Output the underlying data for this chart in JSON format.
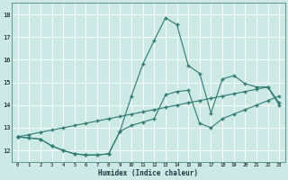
{
  "xlabel": "Humidex (Indice chaleur)",
  "bg_color": "#cce9e5",
  "grid_color": "#ffffff",
  "line_color": "#2e7b6e",
  "xlim": [
    -0.5,
    23.5
  ],
  "ylim": [
    11.5,
    18.5
  ],
  "yticks": [
    12,
    13,
    14,
    15,
    16,
    17,
    18
  ],
  "xticks": [
    0,
    1,
    2,
    3,
    4,
    5,
    6,
    7,
    8,
    9,
    10,
    11,
    12,
    13,
    14,
    15,
    16,
    17,
    18,
    19,
    20,
    21,
    22,
    23
  ],
  "series_peak_x": [
    0,
    1,
    2,
    3,
    4,
    5,
    6,
    7,
    8,
    9,
    10,
    11,
    12,
    13,
    14,
    15,
    16,
    17,
    18,
    19,
    20,
    21,
    22,
    23
  ],
  "series_peak_y": [
    12.6,
    12.55,
    12.5,
    12.2,
    12.0,
    11.85,
    11.8,
    11.8,
    11.85,
    12.85,
    14.4,
    15.8,
    16.85,
    17.85,
    17.55,
    15.75,
    15.4,
    13.65,
    15.15,
    15.3,
    14.95,
    14.8,
    14.8,
    14.1
  ],
  "series_linear_x": [
    0,
    1,
    2,
    3,
    4,
    5,
    6,
    7,
    8,
    9,
    10,
    11,
    12,
    13,
    14,
    15,
    16,
    17,
    18,
    19,
    20,
    21,
    22,
    23
  ],
  "series_linear_y": [
    12.6,
    12.7,
    12.8,
    12.9,
    13.0,
    13.1,
    13.2,
    13.3,
    13.4,
    13.5,
    13.6,
    13.7,
    13.8,
    13.9,
    14.0,
    14.1,
    14.2,
    14.3,
    14.4,
    14.5,
    14.6,
    14.7,
    14.8,
    14.0
  ],
  "series_dip_x": [
    0,
    1,
    2,
    3,
    4,
    5,
    6,
    7,
    8,
    9,
    10,
    11,
    12,
    13,
    14,
    15,
    16,
    17,
    18,
    19,
    20,
    21,
    22,
    23
  ],
  "series_dip_y": [
    12.6,
    12.55,
    12.5,
    12.2,
    12.0,
    11.85,
    11.8,
    11.8,
    11.85,
    12.85,
    13.1,
    13.25,
    13.4,
    14.45,
    14.6,
    14.65,
    13.2,
    13.0,
    13.4,
    13.6,
    13.8,
    14.0,
    14.2,
    14.4
  ]
}
